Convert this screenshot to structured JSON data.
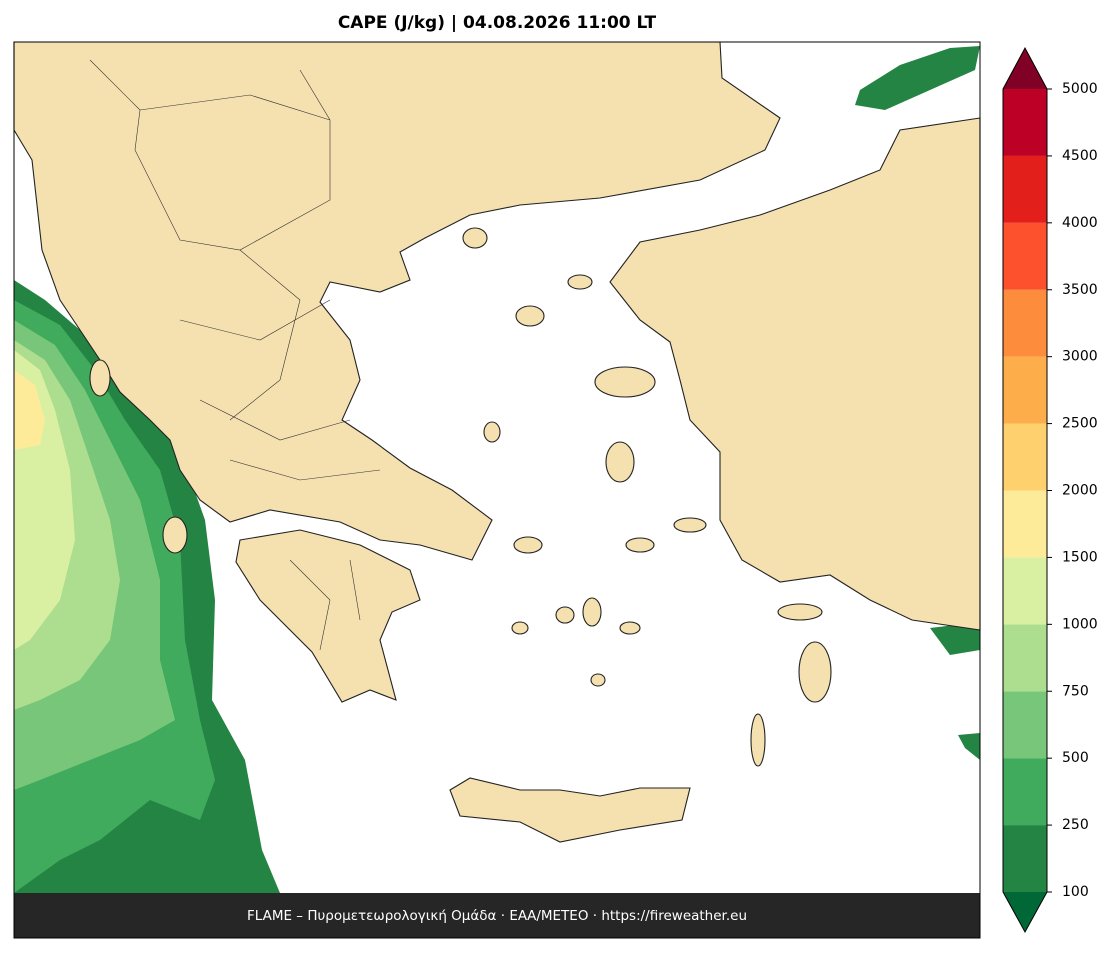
{
  "title": "CAPE (J/kg)  |  04.08.2026 11:00 LT",
  "colorbar": {
    "levels": [
      100,
      250,
      500,
      750,
      1000,
      1500,
      2000,
      2500,
      3000,
      3500,
      4000,
      4500,
      5000
    ],
    "colors": [
      "#238443",
      "#41ab5d",
      "#78c679",
      "#addd8e",
      "#d9f0a3",
      "#feeb9a",
      "#fed16e",
      "#fdae4a",
      "#fd8d3c",
      "#fc512c",
      "#e31f1c",
      "#bd0026"
    ],
    "under_color": "#006837",
    "over_color": "#800026"
  },
  "footer": "FLAME – Πυρομετεωρολογική Ομάδα · ΕΑΑ/METEO · https://fireweather.eu"
}
